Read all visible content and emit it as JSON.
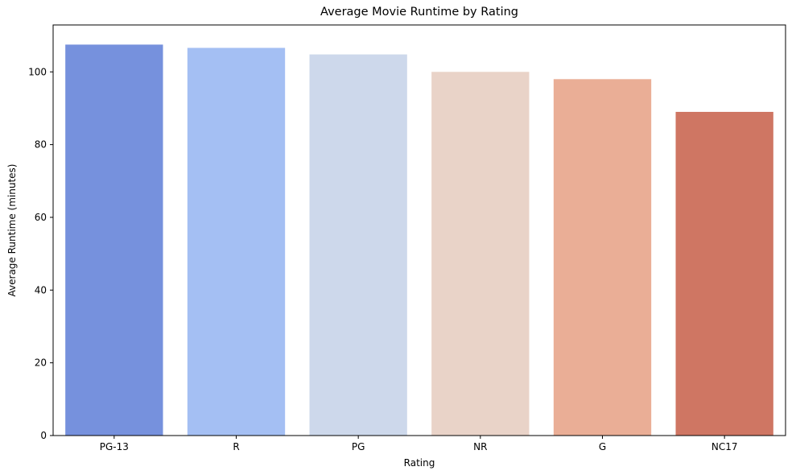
{
  "chart_data": {
    "type": "bar",
    "title": "Average Movie Runtime by Rating",
    "xlabel": "Rating",
    "ylabel": "Average Runtime (minutes)",
    "categories": [
      "PG-13",
      "R",
      "PG",
      "NR",
      "G",
      "NC17"
    ],
    "values": [
      107.5,
      106.6,
      104.8,
      100.0,
      98.0,
      89.0
    ],
    "colors": [
      "#7691dd",
      "#a4bff3",
      "#cdd8eb",
      "#e9d3c8",
      "#eaae96",
      "#cf7663"
    ],
    "ylim": [
      0,
      112.9
    ],
    "yticks": [
      0,
      20,
      40,
      60,
      80,
      100
    ],
    "grid": false,
    "legend": "none"
  }
}
